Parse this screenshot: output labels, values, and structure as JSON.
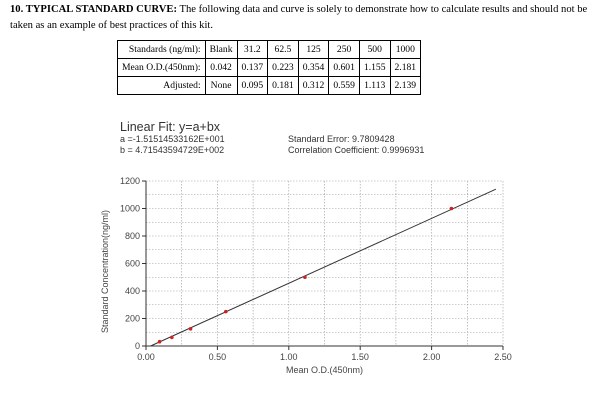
{
  "heading": {
    "number_title": "10. TYPICAL STANDARD CURVE:",
    "text": "The following data and curve is solely to demonstrate how to calculate results and should not be taken as an example of best practices of this kit."
  },
  "table": {
    "rows": [
      {
        "label": "Standards (ng/ml):",
        "cells": [
          "Blank",
          "31.2",
          "62.5",
          "125",
          "250",
          "500",
          "1000"
        ]
      },
      {
        "label": "Mean O.D.(450nm):",
        "cells": [
          "0.042",
          "0.137",
          "0.223",
          "0.354",
          "0.601",
          "1.155",
          "2.181"
        ]
      },
      {
        "label": "Adjusted:",
        "cells": [
          "None",
          "0.095",
          "0.181",
          "0.312",
          "0.559",
          "1.113",
          "2.139"
        ]
      }
    ]
  },
  "fit": {
    "title": "Linear Fit: y=a+bx",
    "a": "a =-1.51514533162E+001",
    "b": "b = 4.71543594729E+002",
    "std_error": "Standard Error: 9.7809428",
    "corr": "Correlation Coefficient: 0.9996931"
  },
  "chart_data": {
    "type": "scatter",
    "xlabel": "Mean O.D.(450nm)",
    "ylabel": "Standard Concentration(ng/ml)",
    "xlim": [
      0,
      2.5
    ],
    "ylim": [
      0,
      1200
    ],
    "xticks": [
      "0.00",
      "0.50",
      "1.00",
      "1.50",
      "2.00",
      "2.50"
    ],
    "yticks": [
      "0",
      "200",
      "400",
      "600",
      "800",
      "1000",
      "1200"
    ],
    "x": [
      0.095,
      0.181,
      0.312,
      0.559,
      1.113,
      2.139
    ],
    "y": [
      31.2,
      62.5,
      125,
      250,
      500,
      1000
    ],
    "fit_line": {
      "a": -15.1514533162,
      "b": 471.543594729
    },
    "grid": true,
    "colors": {
      "points": "#cc2222",
      "line": "#333333",
      "grid": "#999999"
    }
  }
}
